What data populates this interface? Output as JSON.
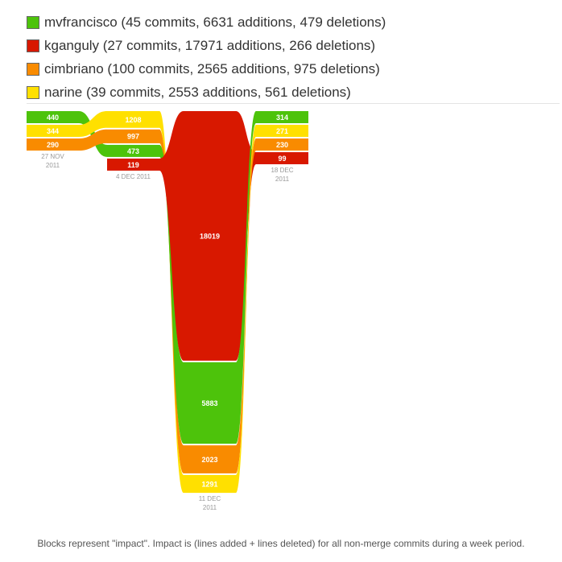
{
  "legend": [
    {
      "label": "mvfrancisco (45 commits, 6631 additions, 479 deletions)",
      "color": "#4dc30b"
    },
    {
      "label": "kganguly (27 commits, 17971 additions, 266 deletions)",
      "color": "#d81800"
    },
    {
      "label": "cimbriano (100 commits, 2565 additions, 975 deletions)",
      "color": "#f98b00"
    },
    {
      "label": "narine (39 commits, 2553 additions, 561 deletions)",
      "color": "#ffe000"
    }
  ],
  "caption": "Blocks represent \"impact\". Impact is (lines added + lines deleted) for all non-merge commits during a week period.",
  "chart_data": {
    "type": "impact-stream",
    "weeks": [
      {
        "tick": [
          "27 NOV",
          "2011"
        ],
        "blocks": [
          {
            "author": "mvfrancisco",
            "value": 440
          },
          {
            "author": "narine",
            "value": 344
          },
          {
            "author": "cimbriano",
            "value": 290
          }
        ]
      },
      {
        "tick": [
          "4 DEC 2011"
        ],
        "blocks": [
          {
            "author": "narine",
            "value": 1208
          },
          {
            "author": "cimbriano",
            "value": 997
          },
          {
            "author": "mvfrancisco",
            "value": 473
          },
          {
            "author": "kganguly",
            "value": 119
          }
        ]
      },
      {
        "tick": [
          "11 DEC",
          "2011"
        ],
        "blocks": [
          {
            "author": "kganguly",
            "value": 18019
          },
          {
            "author": "mvfrancisco",
            "value": 5883
          },
          {
            "author": "cimbriano",
            "value": 2023
          },
          {
            "author": "narine",
            "value": 1291
          }
        ]
      },
      {
        "tick": [
          "18 DEC",
          "2011"
        ],
        "blocks": [
          {
            "author": "mvfrancisco",
            "value": 314
          },
          {
            "author": "narine",
            "value": 271
          },
          {
            "author": "cimbriano",
            "value": 230
          },
          {
            "author": "kganguly",
            "value": 99
          }
        ]
      }
    ],
    "authors": [
      {
        "name": "mvfrancisco",
        "color": "#4dc30b"
      },
      {
        "name": "kganguly",
        "color": "#d81800"
      },
      {
        "name": "cimbriano",
        "color": "#f98b00"
      },
      {
        "name": "narine",
        "color": "#ffe000"
      }
    ]
  }
}
